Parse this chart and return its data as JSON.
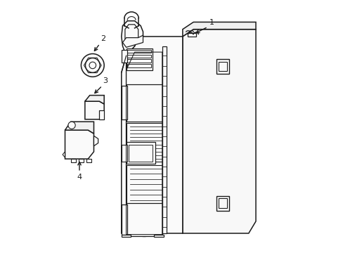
{
  "background_color": "#ffffff",
  "line_color": "#1a1a1a",
  "line_width": 1.1,
  "figsize": [
    4.89,
    3.6
  ],
  "dpi": 100
}
